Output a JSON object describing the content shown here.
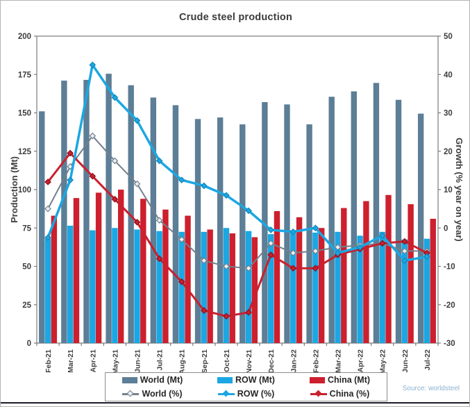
{
  "title": "Crude steel production",
  "source": "Source: worldsteel",
  "colors": {
    "world_bar": "#5c7e96",
    "row_bar": "#1ba7e3",
    "china_bar": "#cd1f2d",
    "world_line": "#72808c",
    "row_line": "#1ba7e3",
    "china_line": "#c9202e",
    "world_marker_fill": "#e9eef2",
    "axis_text": "#3d3d3d",
    "frame": "#7a7a7a",
    "source_text": "#8cb2d1"
  },
  "legend": {
    "items": [
      {
        "label": "World (Mt)",
        "type": "bar",
        "series": "world"
      },
      {
        "label": "ROW (Mt)",
        "type": "bar",
        "series": "row"
      },
      {
        "label": "China (Mt)",
        "type": "bar",
        "series": "china"
      },
      {
        "label": "World (%)",
        "type": "line",
        "series": "world"
      },
      {
        "label": "ROW (%)",
        "type": "line",
        "series": "row"
      },
      {
        "label": "China (%)",
        "type": "line",
        "series": "china"
      }
    ]
  },
  "chart_data": {
    "type": "bar",
    "subtype": "grouped bars with overlaid growth lines",
    "title": "Crude steel production",
    "categories": [
      "Feb-21",
      "Mar-21",
      "Apr-21",
      "May-21",
      "Jun-21",
      "Jul-21",
      "Aug-21",
      "Sep-21",
      "Oct-21",
      "Nov-21",
      "Dec-21",
      "Jan-22",
      "Feb-22",
      "Mar-22",
      "Apr-22",
      "May-22",
      "Jun-22",
      "Jul-22"
    ],
    "bar_series": [
      {
        "name": "World (Mt)",
        "axis": "left",
        "values": [
          151,
          171,
          171.5,
          175.5,
          168,
          160,
          155,
          146,
          147,
          142.5,
          157,
          155.5,
          142.5,
          160.5,
          164,
          169.5,
          158.5,
          149.5
        ]
      },
      {
        "name": "ROW (Mt)",
        "axis": "left",
        "values": [
          68,
          76.5,
          73.5,
          75,
          74,
          73,
          72.5,
          72.5,
          75,
          73,
          71,
          73,
          72,
          72.5,
          70,
          72.5,
          67.5,
          68
        ]
      },
      {
        "name": "China (Mt)",
        "axis": "left",
        "values": [
          83,
          94.5,
          98,
          100,
          94,
          87,
          83,
          74,
          71.5,
          69,
          86,
          82,
          75,
          88,
          92.5,
          96.5,
          90.5,
          81
        ]
      }
    ],
    "line_series": [
      {
        "name": "World (%)",
        "axis": "right",
        "values": [
          5,
          16,
          24,
          17.5,
          11.5,
          2,
          -3,
          -8.5,
          -10,
          -10.5,
          -4,
          -6.5,
          -6,
          -5,
          -4.5,
          -4,
          -6,
          -6
        ]
      },
      {
        "name": "ROW (%)",
        "axis": "right",
        "values": [
          -2.5,
          12.5,
          42.5,
          34,
          28,
          17.5,
          12.5,
          11,
          8.5,
          4.5,
          -0.5,
          -1,
          0,
          -6.5,
          -5,
          -2,
          -8.5,
          -7.5
        ]
      },
      {
        "name": "China (%)",
        "axis": "right",
        "values": [
          12,
          19.5,
          13.5,
          7.5,
          1.5,
          -8,
          -14,
          -21.5,
          -23,
          -22,
          -7,
          -10.5,
          -10.5,
          -7,
          -5.5,
          -4,
          -3.5,
          -6.5
        ]
      }
    ],
    "left_axis": {
      "label": "Production (Mt)",
      "min": 0,
      "max": 200,
      "ticks": [
        0,
        25,
        50,
        75,
        100,
        125,
        150,
        175,
        200
      ]
    },
    "right_axis": {
      "label": "Growth (% year on year)",
      "min": -30,
      "max": 50,
      "ticks": [
        -30,
        -20,
        -10,
        0,
        10,
        20,
        30,
        40,
        50
      ]
    },
    "grid": false,
    "legend_position": "bottom"
  }
}
